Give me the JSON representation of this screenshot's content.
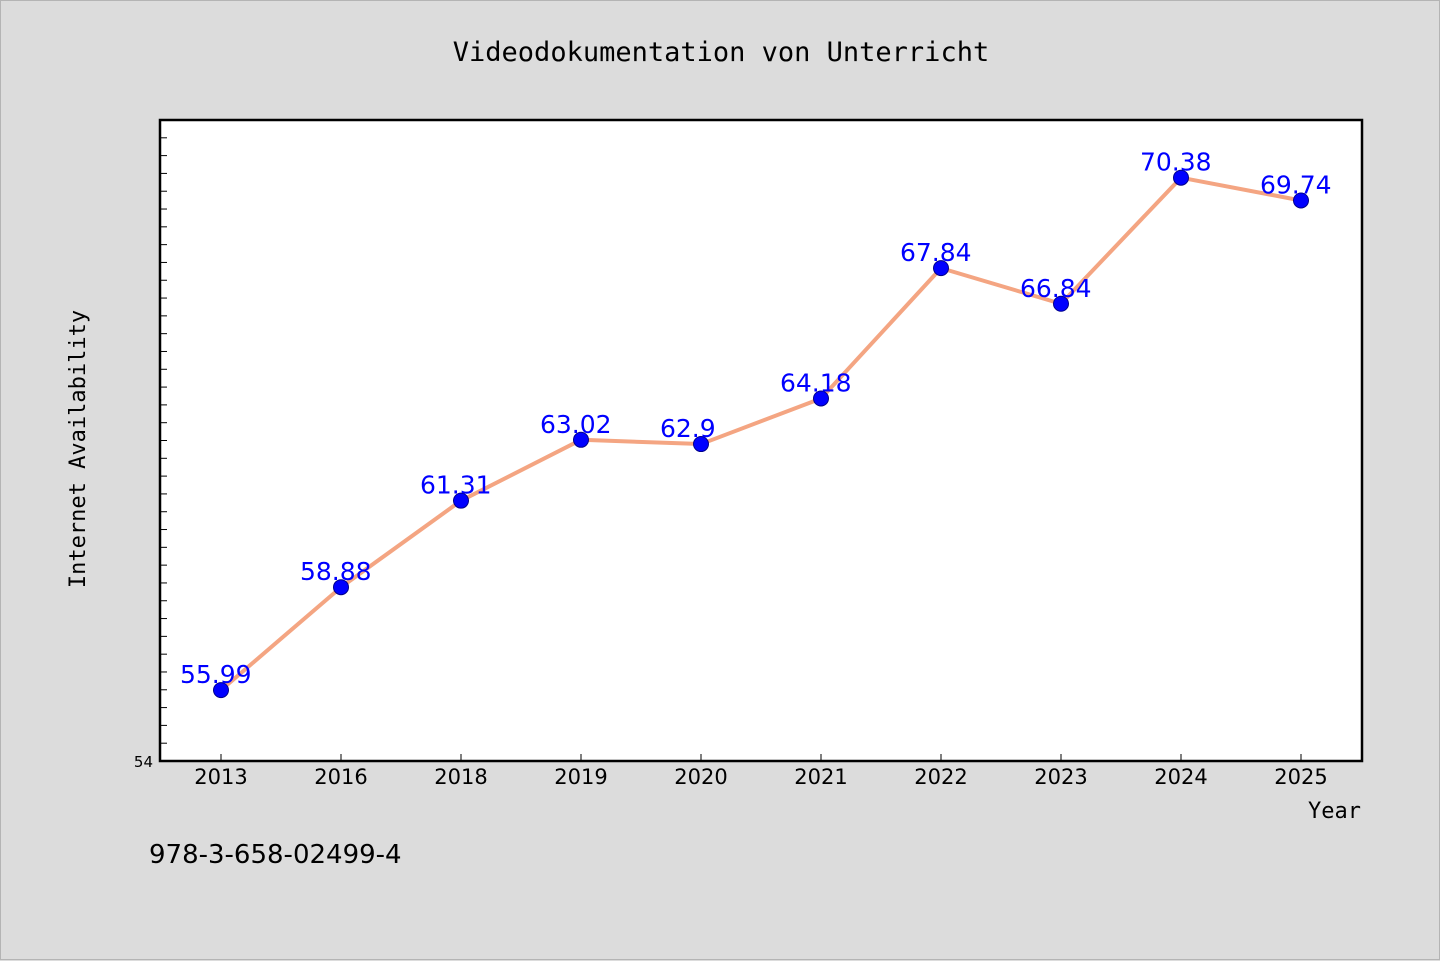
{
  "chart_data": {
    "type": "line",
    "title": "Videodokumentation von Unterricht",
    "xlabel": "Year",
    "ylabel": "Internet Availability",
    "categories": [
      "2013",
      "2016",
      "2018",
      "2019",
      "2020",
      "2021",
      "2022",
      "2023",
      "2024",
      "2025"
    ],
    "series": [
      {
        "values": [
          55.99,
          58.88,
          61.31,
          63.02,
          62.9,
          64.18,
          67.84,
          66.84,
          70.38,
          69.74
        ],
        "labels": [
          "55.99",
          "58.88",
          "61.31",
          "63.02",
          "62.9",
          "64.18",
          "67.84",
          "66.84",
          "70.38",
          "69.74"
        ],
        "line_color": "#f4a582",
        "marker_color": "#0000ff"
      }
    ],
    "ylim": [
      54,
      72
    ],
    "ymin_label": "54",
    "grid": false,
    "legend": "none",
    "label_color": "#0000ff"
  },
  "footer": {
    "text": "978-3-658-02499-4"
  },
  "colors": {
    "background": "#dcdcdc",
    "plot_background": "#ffffff"
  }
}
